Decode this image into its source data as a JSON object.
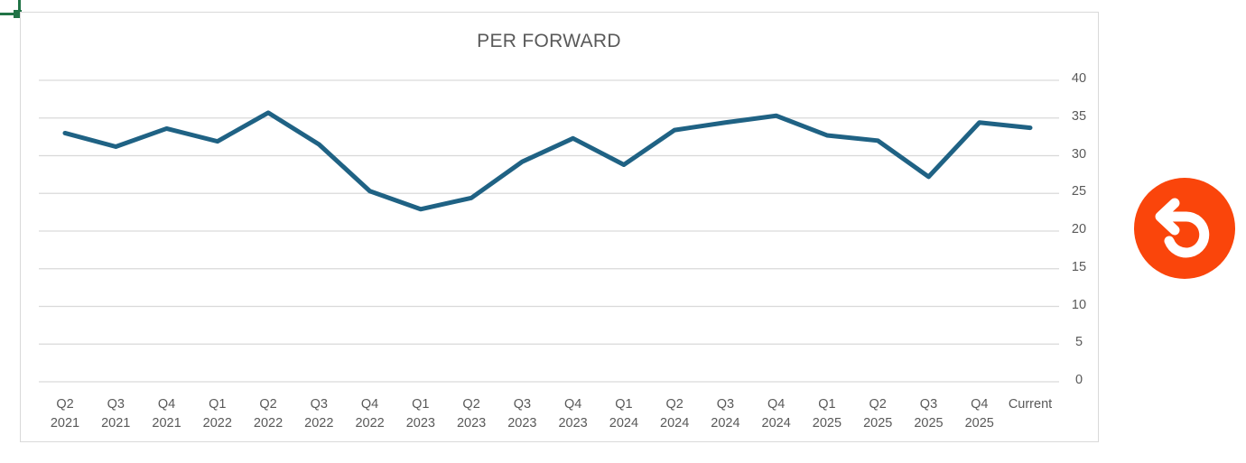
{
  "chart_data": {
    "type": "line",
    "title": "PER FORWARD",
    "categories": [
      "Q2 2021",
      "Q3 2021",
      "Q4 2021",
      "Q1 2022",
      "Q2 2022",
      "Q3 2022",
      "Q4 2022",
      "Q1 2023",
      "Q2 2023",
      "Q3 2023",
      "Q4 2023",
      "Q1 2024",
      "Q2 2024",
      "Q3 2024",
      "Q4 2024",
      "Q1 2025",
      "Q2 2025",
      "Q3 2025",
      "Q4 2025",
      "Current"
    ],
    "values": [
      33.0,
      31.2,
      33.6,
      31.9,
      35.7,
      31.5,
      25.3,
      22.9,
      24.4,
      29.2,
      32.3,
      28.8,
      33.4,
      34.4,
      35.3,
      32.7,
      32.0,
      27.2,
      34.4,
      33.7
    ],
    "xlabel": "",
    "ylabel": "",
    "ylim": [
      0,
      40
    ],
    "yticks": [
      0,
      5,
      10,
      15,
      20,
      25,
      30,
      35,
      40
    ],
    "y_axis_position": "right",
    "grid": true,
    "legend": "none",
    "line_color": "#1f6284",
    "gridline_color": "#d9d9d9",
    "text_color": "#595959"
  },
  "selection_handle": {
    "color": "#217346"
  },
  "undo_button": {
    "icon": "undo-arrow-icon",
    "background_color": "#fa450b",
    "icon_color": "#ffffff"
  }
}
